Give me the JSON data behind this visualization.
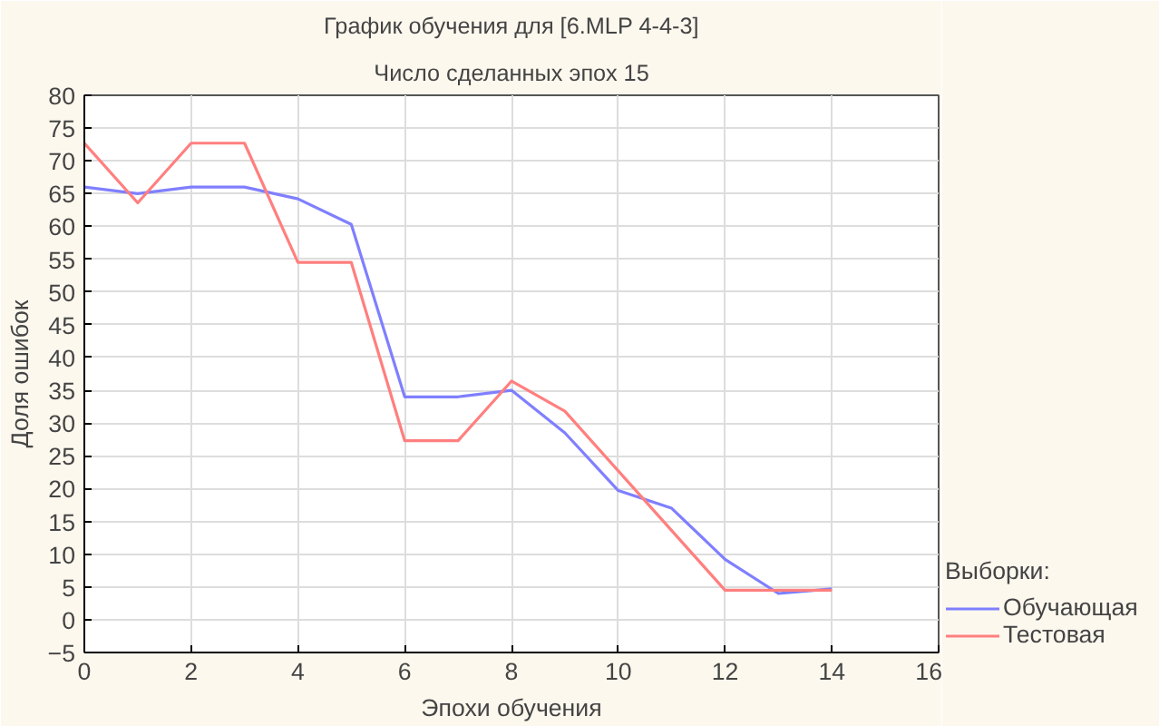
{
  "chart_data": {
    "type": "line",
    "title": "График обучения для [6.MLP 4-4-3]",
    "subtitle": "Число сделанных эпох 15",
    "xlabel": "Эпохи обучения",
    "ylabel": "Доля ошибок",
    "legend_title": "Выборки:",
    "x": [
      0,
      1,
      2,
      3,
      4,
      5,
      6,
      7,
      8,
      9,
      10,
      11,
      12,
      13,
      14
    ],
    "series": [
      {
        "name": "Обучающая",
        "color": "#7f7fff",
        "values": [
          66,
          65,
          66,
          66,
          64.2,
          60.3,
          34,
          34,
          35,
          28.5,
          19.7,
          17,
          9.2,
          4,
          4.7
        ]
      },
      {
        "name": "Тестовая",
        "color": "#ff7f7f",
        "values": [
          72.7,
          63.6,
          72.7,
          72.7,
          54.5,
          54.5,
          27.3,
          27.3,
          36.4,
          31.8,
          22.7,
          13.6,
          4.5,
          4.5,
          4.5
        ]
      }
    ],
    "xlim": [
      0,
      16
    ],
    "xticks": [
      0,
      2,
      4,
      6,
      8,
      10,
      12,
      14,
      16
    ],
    "ylim": [
      -5,
      80
    ],
    "yticks": [
      -5,
      0,
      5,
      10,
      15,
      20,
      25,
      30,
      35,
      40,
      45,
      50,
      55,
      60,
      65,
      70,
      75,
      80
    ],
    "grid": true,
    "legend": "bottom right",
    "marker": "none",
    "line_style": "solid"
  }
}
